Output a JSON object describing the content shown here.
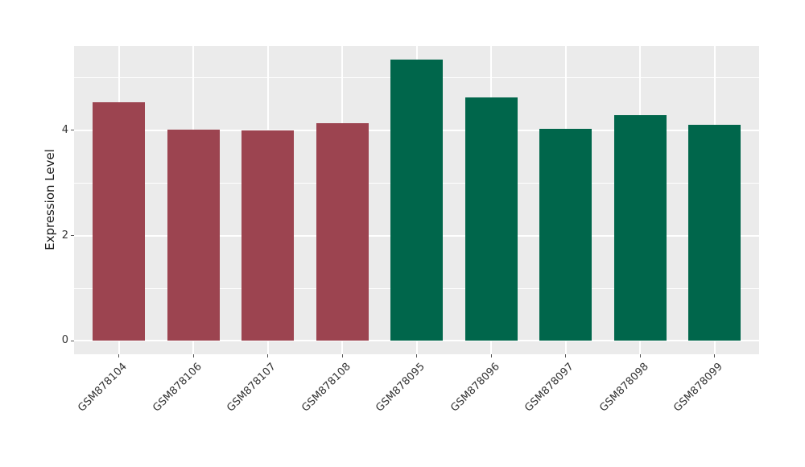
{
  "chart_data": {
    "type": "bar",
    "title": "",
    "xlabel": "",
    "ylabel": "Expression Level",
    "categories": [
      "GSM878104",
      "GSM878106",
      "GSM878107",
      "GSM878108",
      "GSM878095",
      "GSM878096",
      "GSM878097",
      "GSM878098",
      "GSM878099"
    ],
    "values": [
      4.53,
      4.01,
      3.99,
      4.13,
      5.34,
      4.62,
      4.02,
      4.28,
      4.1
    ],
    "bar_groups": [
      "maroon",
      "maroon",
      "maroon",
      "maroon",
      "green",
      "green",
      "green",
      "green",
      "green"
    ],
    "group_colors": {
      "maroon": "#9C4450",
      "green": "#00664B"
    },
    "y_axis": {
      "ticks": [
        0,
        2,
        4
      ],
      "minor_ticks": [
        1,
        3,
        5
      ],
      "range": [
        -0.28,
        5.61
      ]
    },
    "legend": false,
    "grid": true,
    "style": {
      "panel_bg": "#EBEBEB",
      "grid_color": "#FFFFFF",
      "tick_color": "#555555",
      "axis_text_color": "#333333",
      "axis_title_color": "#1a1a1a",
      "figure_bg": "#FFFFFF"
    }
  }
}
